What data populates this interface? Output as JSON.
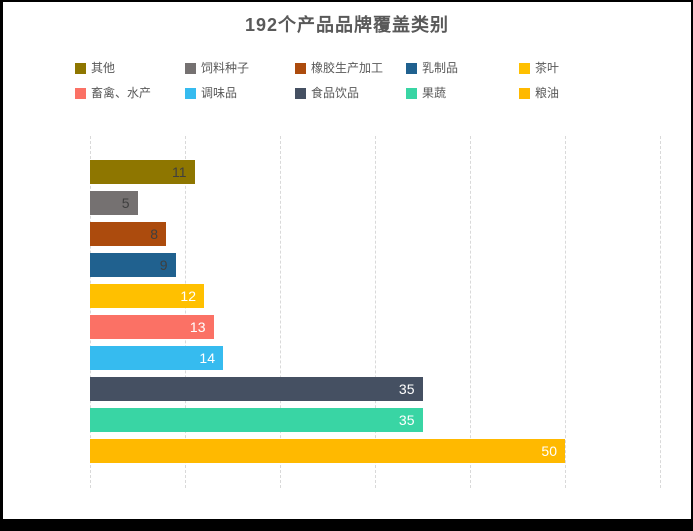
{
  "frame": {
    "background_color": "#000000",
    "panel_background_color": "#ffffff"
  },
  "chart_data": {
    "type": "bar",
    "orientation": "horizontal",
    "title": "192个产品品牌覆盖类别",
    "title_color": "#595959",
    "categories": [
      "其他",
      "饲料种子",
      "橡胶生产加工",
      "乳制品",
      "茶叶",
      "畜禽、水产",
      "调味品",
      "食品饮品",
      "果蔬",
      "粮油"
    ],
    "values": [
      11,
      5,
      8,
      9,
      12,
      13,
      14,
      35,
      35,
      50
    ],
    "bar_colors": [
      "#8E7600",
      "#757171",
      "#AC4B0D",
      "#20618F",
      "#FFC000",
      "#FB7165",
      "#36BBEF",
      "#455062",
      "#39D5A4",
      "#FFB900"
    ],
    "value_label_colors": [
      "#3F3F3F",
      "#3F3F3F",
      "#3F3F3F",
      "#3F3F3F",
      "#FFFFFF",
      "#FFFFFF",
      "#FFFFFF",
      "#FFFFFF",
      "#FFFFFF",
      "#FFFFFF"
    ],
    "xlabel": "",
    "ylabel": "",
    "xlim": [
      0,
      60
    ],
    "gridline_step": 10,
    "grid": "vertical-dashed",
    "gridline_color": "#d9d9d9",
    "legend_position": "top",
    "legend_rows": 2,
    "legend_columns": 5,
    "legend_text_color": "#595959",
    "axis_tick_labels_visible": false,
    "value_labels_position": "inside-end"
  }
}
